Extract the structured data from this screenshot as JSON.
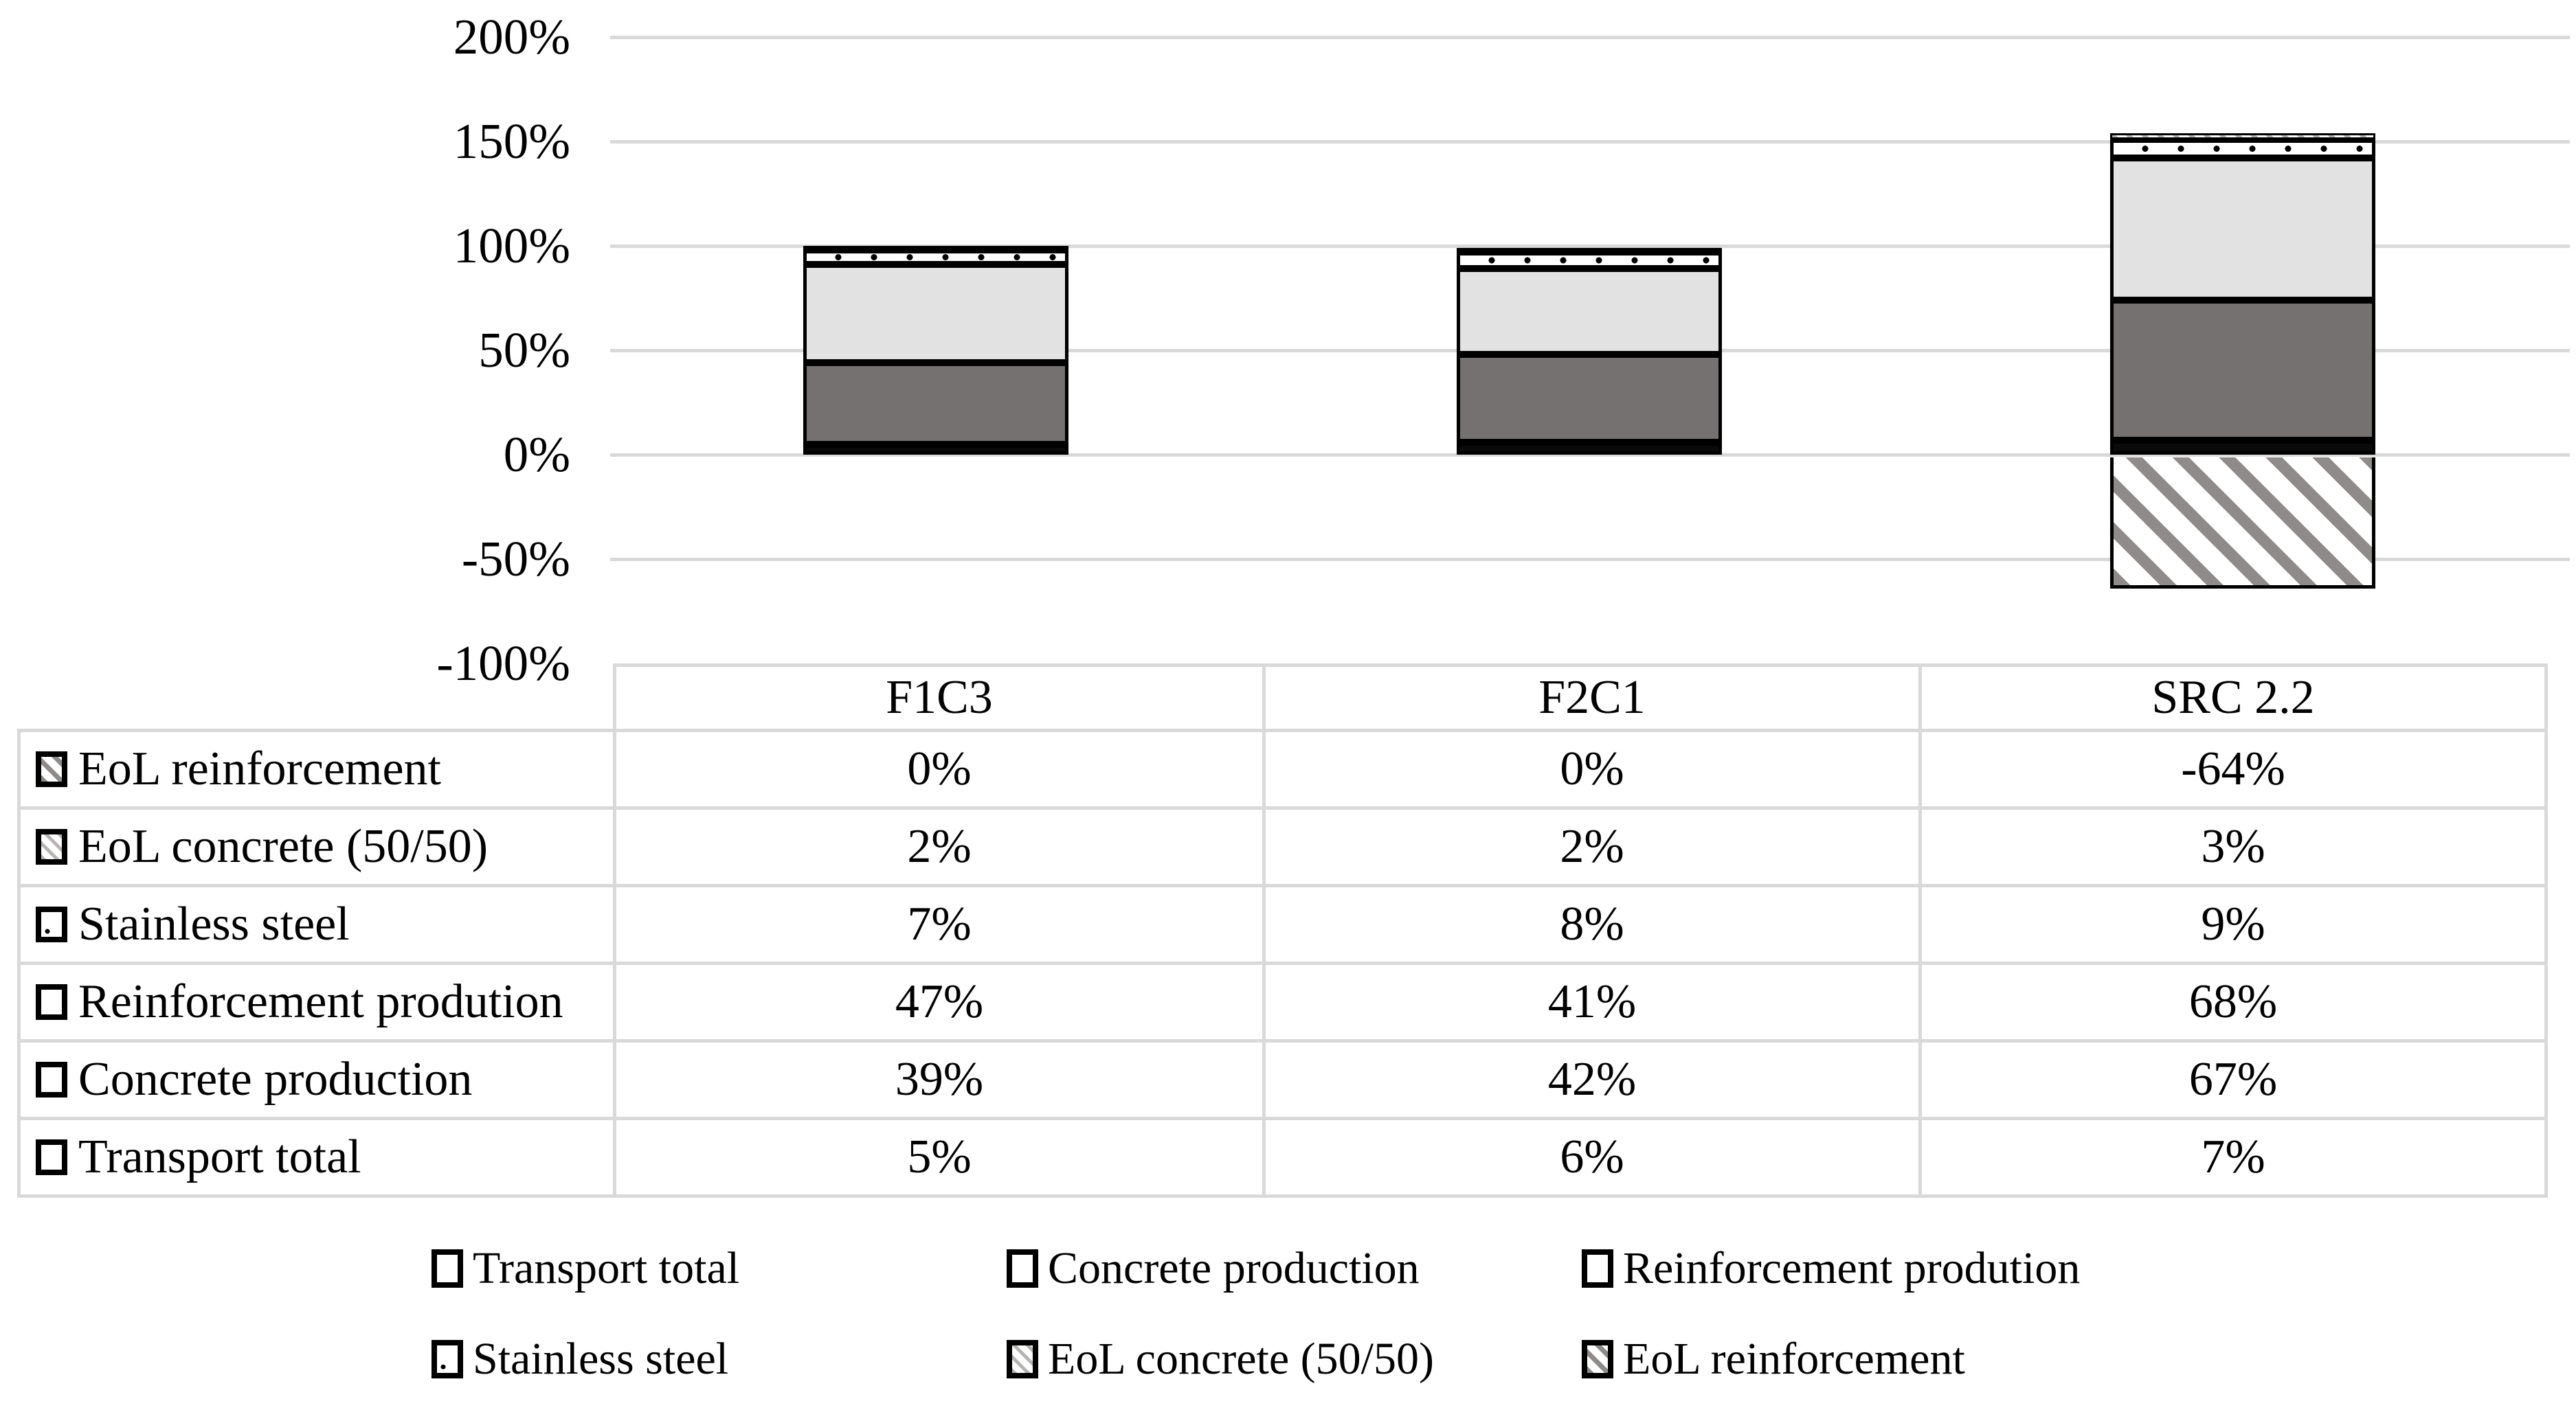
{
  "chart_data": {
    "type": "bar",
    "stacked": true,
    "title": "",
    "categories": [
      "F1C3",
      "F2C1",
      "SRC 2.2"
    ],
    "series": [
      {
        "name": "Transport total",
        "pattern": "solid-black",
        "values": [
          5,
          6,
          7
        ]
      },
      {
        "name": "Concrete production",
        "pattern": "solid-darkgray",
        "values": [
          39,
          42,
          67
        ]
      },
      {
        "name": "Reinforcement prodution",
        "pattern": "solid-lightgray",
        "values": [
          47,
          41,
          68
        ]
      },
      {
        "name": "Stainless steel",
        "pattern": "dots-white",
        "values": [
          7,
          8,
          9
        ]
      },
      {
        "name": "EoL concrete (50/50)",
        "pattern": "diag-dash-light",
        "values": [
          2,
          2,
          3
        ]
      },
      {
        "name": "EoL reinforcement",
        "pattern": "diag-hatch",
        "values": [
          0,
          0,
          -64
        ]
      }
    ],
    "y_axis": {
      "unit": "%",
      "range": [
        -100,
        200
      ],
      "ticks": [
        {
          "label": "200%",
          "value": 200
        },
        {
          "label": "150%",
          "value": 150
        },
        {
          "label": "100%",
          "value": 100
        },
        {
          "label": "50%",
          "value": 50
        },
        {
          "label": "0%",
          "value": 0
        },
        {
          "label": "-50%",
          "value": -50
        },
        {
          "label": "-100%",
          "value": -100
        }
      ]
    },
    "grid": true,
    "legend_position": "bottom"
  },
  "table": {
    "column_headers": [
      "F1C3",
      "F2C1",
      "SRC 2.2"
    ],
    "rows": [
      {
        "label": "EoL reinforcement",
        "icon": "diag-hatch-swatch-icon",
        "pattern": "diag-hatch",
        "values": [
          "0%",
          "0%",
          "-64%"
        ]
      },
      {
        "label": "EoL concrete (50/50)",
        "icon": "diag-dash-swatch-icon",
        "pattern": "diag-dash-light",
        "values": [
          "2%",
          "2%",
          "3%"
        ]
      },
      {
        "label": "Stainless steel",
        "icon": "dotted-white-swatch-icon",
        "pattern": "dots-white",
        "values": [
          "7%",
          "8%",
          "9%"
        ]
      },
      {
        "label": "Reinforcement prodution",
        "icon": "light-gray-swatch-icon",
        "pattern": "solid-lightgray",
        "values": [
          "47%",
          "41%",
          "68%"
        ]
      },
      {
        "label": "Concrete production",
        "icon": "dark-gray-swatch-icon",
        "pattern": "solid-darkgray",
        "values": [
          "39%",
          "42%",
          "67%"
        ]
      },
      {
        "label": "Transport total",
        "icon": "black-swatch-icon",
        "pattern": "solid-black",
        "values": [
          "5%",
          "6%",
          "7%"
        ]
      }
    ]
  },
  "legend": {
    "items": [
      {
        "label": "Transport total",
        "icon": "black-swatch-icon",
        "pattern": "solid-black"
      },
      {
        "label": "Concrete production",
        "icon": "dark-gray-swatch-icon",
        "pattern": "solid-darkgray"
      },
      {
        "label": "Reinforcement prodution",
        "icon": "light-gray-swatch-icon",
        "pattern": "solid-lightgray"
      },
      {
        "label": "Stainless steel",
        "icon": "dotted-white-swatch-icon",
        "pattern": "dots-white"
      },
      {
        "label": "EoL concrete (50/50)",
        "icon": "diag-dash-swatch-icon",
        "pattern": "diag-dash-light"
      },
      {
        "label": "EoL reinforcement",
        "icon": "diag-hatch-swatch-icon",
        "pattern": "diag-hatch"
      }
    ]
  },
  "colors": {
    "black": "#0a0a0a",
    "dark_gray": "#757171",
    "light_gray": "#e3e2e2",
    "hatch_gray": "#8f8b8b",
    "dash_gray": "#b5b1b1",
    "grid_line": "#d9d9d9",
    "text": "#000000",
    "background": "#ffffff"
  }
}
